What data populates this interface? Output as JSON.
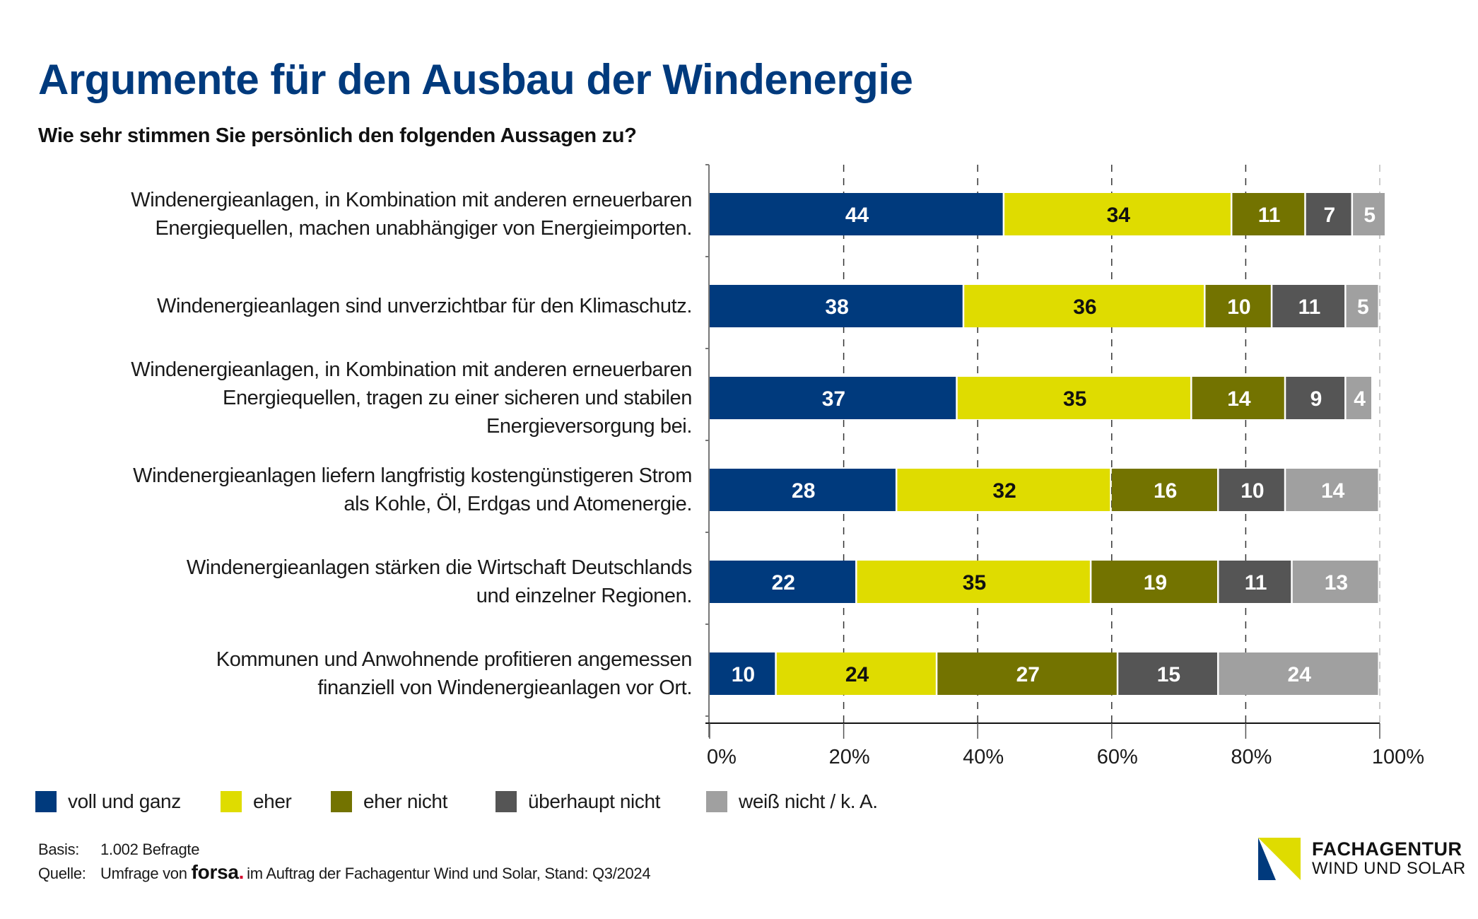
{
  "header": {
    "title": "Argumente für den Ausbau der Windenergie",
    "subtitle": "Wie sehr stimmen Sie persönlich den folgenden Aussagen zu?"
  },
  "chart_data": {
    "type": "bar",
    "orientation": "horizontal",
    "stacked": true,
    "title": "Argumente für den Ausbau der Windenergie",
    "subtitle": "Wie sehr stimmen Sie persönlich den folgenden Aussagen zu?",
    "xlabel": "",
    "ylabel": "",
    "xlim": [
      0,
      100
    ],
    "x_ticks": [
      "0%",
      "20%",
      "40%",
      "60%",
      "80%",
      "100%"
    ],
    "grid": "vertical dashed at 20/40/60/80/100",
    "legend_position": "bottom",
    "categories": [
      "Windenergieanlagen, in Kombination mit anderen erneuerbaren\nEnergiequellen, machen unabhängiger von Energieimporten.",
      "Windenergieanlagen sind unverzichtbar für den Klimaschutz.",
      "Windenergieanlagen, in Kombination mit anderen erneuerbaren\nEnergiequellen, tragen zu einer sicheren und stabilen\nEnergieversorgung bei.",
      "Windenergieanlagen liefern langfristig kostengünstigeren Strom\nals Kohle, Öl, Erdgas und Atomenergie.",
      "Windenergieanlagen stärken die Wirtschaft Deutschlands\nund einzelner Regionen.",
      "Kommunen und Anwohnende profitieren angemessen\nfinanziell von Windenergieanlagen vor Ort."
    ],
    "series": [
      {
        "name": "voll und ganz",
        "color": "#003a7d",
        "label_color": "#ffffff",
        "values": [
          44,
          38,
          37,
          28,
          22,
          10
        ]
      },
      {
        "name": "eher",
        "color": "#dfdc00",
        "label_color": "#111111",
        "values": [
          34,
          36,
          35,
          32,
          35,
          24
        ]
      },
      {
        "name": "eher nicht",
        "color": "#737300",
        "label_color": "#ffffff",
        "values": [
          11,
          10,
          14,
          16,
          19,
          27
        ]
      },
      {
        "name": "überhaupt nicht",
        "color": "#555555",
        "label_color": "#ffffff",
        "values": [
          7,
          11,
          9,
          10,
          11,
          15
        ]
      },
      {
        "name": "weiß nicht / k. A.",
        "color": "#a0a0a0",
        "label_color": "#ffffff",
        "values": [
          5,
          5,
          4,
          14,
          13,
          24
        ]
      }
    ]
  },
  "legend": [
    {
      "label": "voll und ganz",
      "color": "#003a7d"
    },
    {
      "label": "eher",
      "color": "#dfdc00"
    },
    {
      "label": "eher nicht",
      "color": "#737300"
    },
    {
      "label": "überhaupt nicht",
      "color": "#555555"
    },
    {
      "label": "weiß nicht / k. A.",
      "color": "#a0a0a0"
    }
  ],
  "footer": {
    "basis_key": "Basis:",
    "basis_value": "1.002 Befragte",
    "source_key": "Quelle:",
    "source_prefix": "Umfrage von",
    "source_brand": "forsa",
    "source_brand_dot": ".",
    "source_suffix": "im Auftrag der Fachagentur Wind und Solar, Stand: Q3/2024"
  },
  "logo": {
    "line1": "FACHAGENTUR",
    "line2": "WIND UND SOLAR",
    "colors": {
      "yellow": "#dfdc00",
      "blue": "#003a7d"
    }
  }
}
